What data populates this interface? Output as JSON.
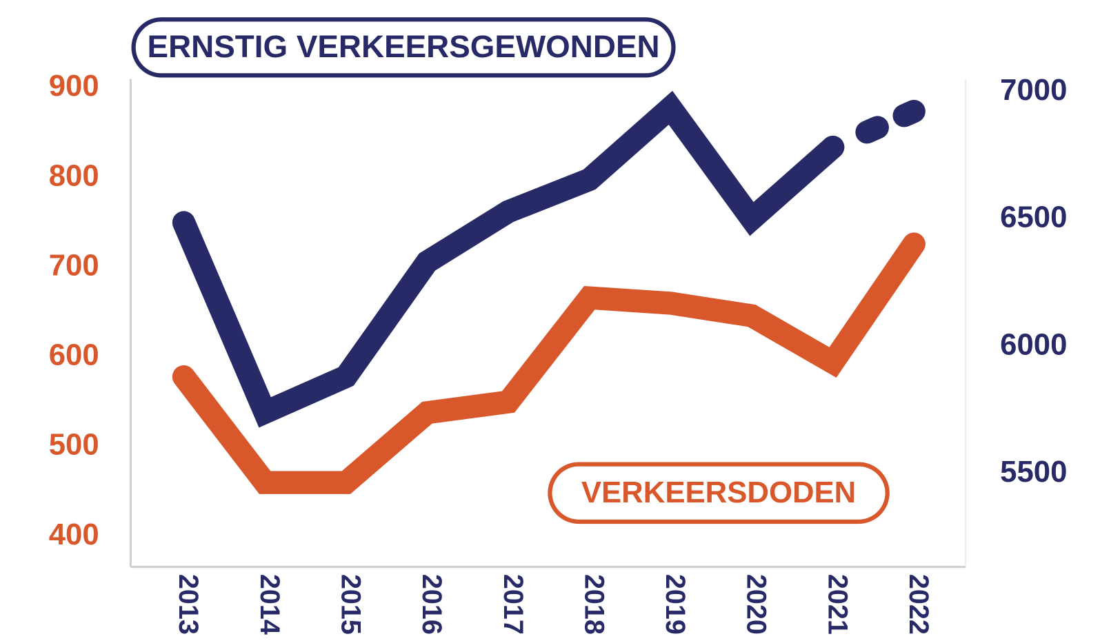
{
  "chart_data": {
    "type": "line",
    "categories": [
      "2013",
      "2014",
      "2015",
      "2016",
      "2017",
      "2018",
      "2019",
      "2020",
      "2021",
      "2022"
    ],
    "series": [
      {
        "name": "VERKEERSDODEN",
        "color": "#d9582b",
        "axis": "y",
        "values": [
          578,
          460,
          460,
          538,
          550,
          666,
          660,
          646,
          594,
          726
        ]
      },
      {
        "name": "ERNSTIG VERKEERSGEWONDEN",
        "color": "#272a66",
        "axis": "y2",
        "dashed_last_segment": true,
        "values": [
          6487,
          5741,
          5882,
          6332,
          6530,
          6656,
          6938,
          6501,
          6783,
          6924
        ]
      }
    ],
    "ylim": [
      366,
      910
    ],
    "yticks": [
      400,
      500,
      600,
      700,
      800,
      900
    ],
    "y2lim": [
      5134,
      7051
    ],
    "y2ticks": [
      5500,
      6000,
      6500,
      7000
    ]
  }
}
